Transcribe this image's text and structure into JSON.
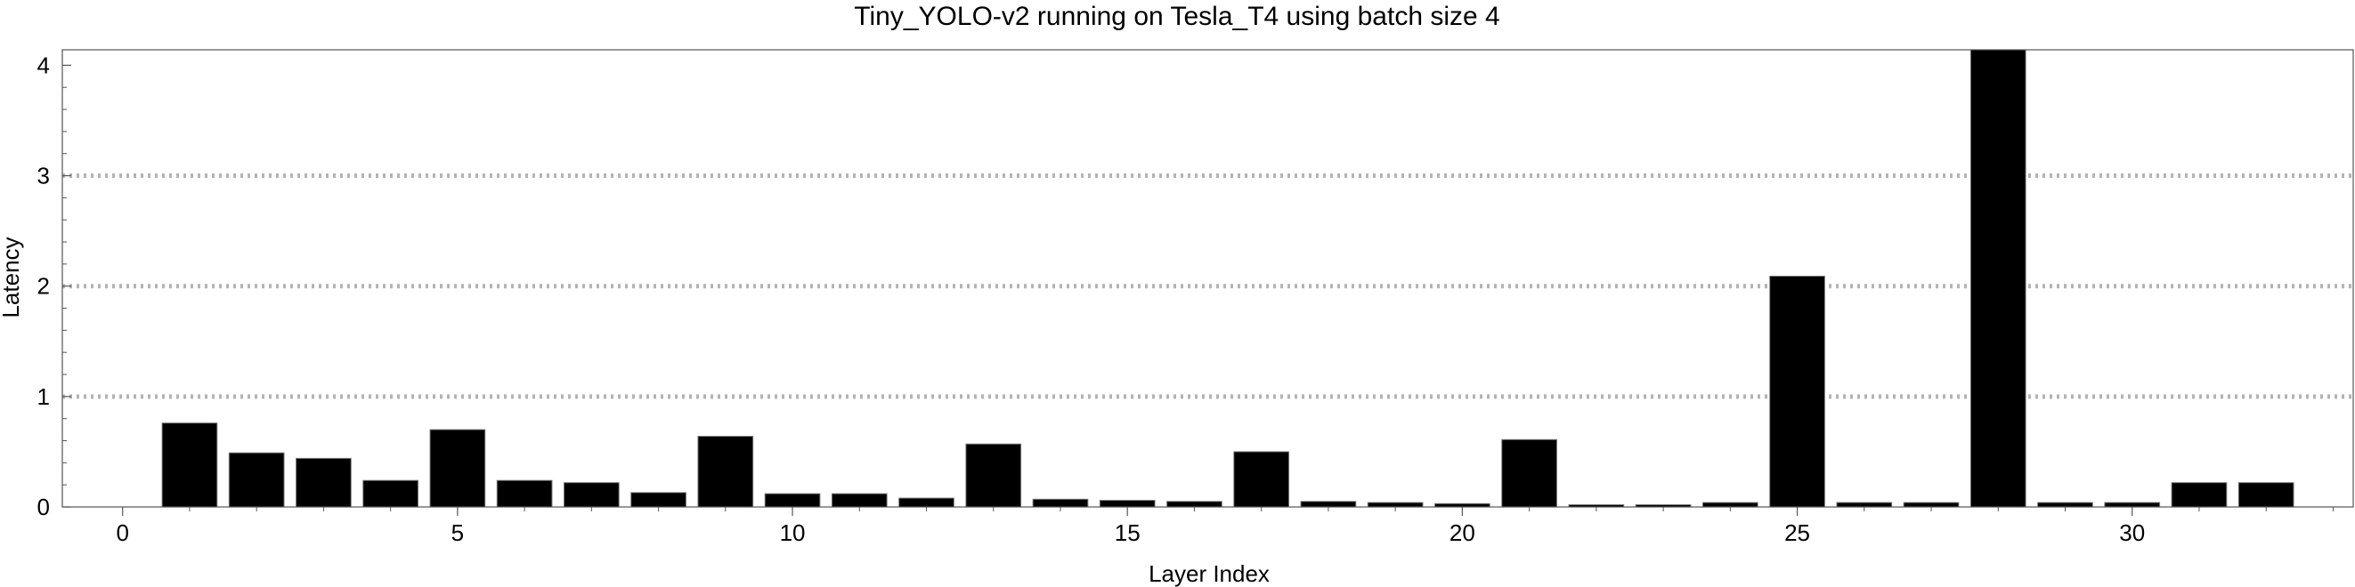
{
  "chart_data": {
    "type": "bar",
    "title": "Tiny_YOLO-v2 running on Tesla_T4 using batch size 4",
    "xlabel": "Layer Index",
    "ylabel": "Latency",
    "x": [
      1,
      2,
      3,
      4,
      5,
      6,
      7,
      8,
      9,
      10,
      11,
      12,
      13,
      14,
      15,
      16,
      17,
      18,
      19,
      20,
      21,
      22,
      23,
      24,
      25,
      26,
      27,
      28,
      29,
      30,
      31,
      32
    ],
    "values": [
      0.76,
      0.49,
      0.44,
      0.24,
      0.7,
      0.24,
      0.22,
      0.13,
      0.64,
      0.12,
      0.12,
      0.08,
      0.57,
      0.07,
      0.06,
      0.05,
      0.5,
      0.05,
      0.04,
      0.03,
      0.61,
      0.02,
      0.02,
      0.04,
      2.09,
      0.04,
      0.04,
      4.14,
      0.04,
      0.04,
      0.22,
      0.22
    ],
    "xlim": [
      -0.9,
      33.3
    ],
    "ylim": [
      0,
      4.14
    ],
    "xticks": [
      "0",
      "5",
      "10",
      "15",
      "20",
      "25",
      "30"
    ],
    "yticks": [
      "0",
      "1",
      "2",
      "3",
      "4"
    ],
    "grid": "horizontal dotted at 1, 2, 3",
    "colors": {
      "bar": "#000000",
      "grid": "#b3b3b3",
      "axis": "#555555"
    }
  }
}
